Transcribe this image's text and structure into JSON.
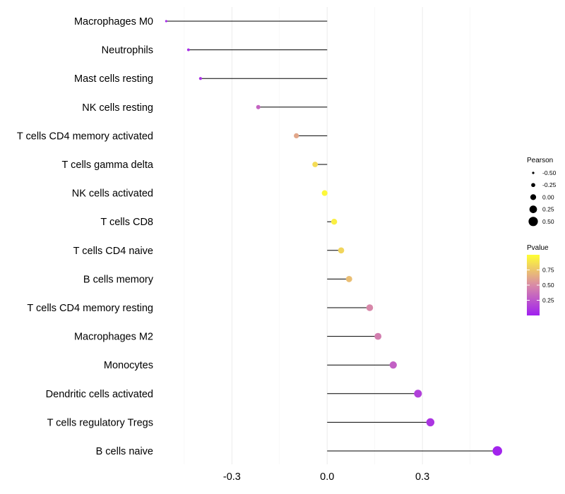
{
  "chart_data": {
    "type": "lollipop",
    "title": "",
    "xlabel": "",
    "ylabel": "",
    "xlim": [
      -0.53,
      0.56
    ],
    "xticks": [
      -0.3,
      0.0,
      0.3
    ],
    "xtick_labels": [
      "-0.3",
      "0.0",
      "0.3"
    ],
    "grid": true,
    "baseline": 0,
    "categories": [
      "Macrophages M0",
      "Neutrophils",
      "Mast cells resting",
      "NK cells resting",
      "T cells CD4 memory activated",
      "T cells gamma delta",
      "NK cells activated",
      "T cells CD8",
      "T cells CD4 naive",
      "B cells memory",
      "T cells CD4 memory resting",
      "Macrophages M2",
      "Monocytes",
      "Dendritic cells activated",
      "T cells regulatory  Tregs",
      "B cells naive"
    ],
    "values": [
      -0.507,
      -0.437,
      -0.399,
      -0.217,
      -0.097,
      -0.038,
      -0.008,
      0.022,
      0.044,
      0.069,
      0.134,
      0.16,
      0.208,
      0.286,
      0.325,
      0.536
    ],
    "pvalues": [
      0.05,
      0.06,
      0.08,
      0.32,
      0.62,
      0.85,
      0.97,
      0.93,
      0.82,
      0.72,
      0.48,
      0.44,
      0.3,
      0.15,
      0.1,
      0.02
    ],
    "size_legend": {
      "title": "Pearson",
      "breaks": [
        -0.5,
        -0.25,
        0.0,
        0.25,
        0.5
      ],
      "labels": [
        "-0.50",
        "-0.25",
        "0.00",
        "0.25",
        "0.50"
      ]
    },
    "color_legend": {
      "title": "Pvalue",
      "breaks": [
        0.25,
        0.5,
        0.75
      ],
      "labels": [
        "0.25",
        "0.50",
        "0.75"
      ],
      "low_color": "#A020F0",
      "mid_color": "#D98BA6",
      "high_color": "#FFFF33",
      "range": [
        0.0,
        1.0
      ]
    }
  }
}
